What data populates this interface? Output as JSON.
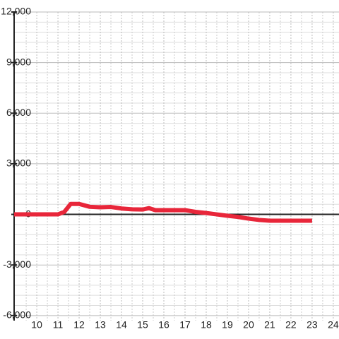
{
  "chart_data": {
    "type": "line",
    "x": [
      8.93,
      11,
      11.3,
      11.6,
      12,
      12.5,
      13,
      13.5,
      14,
      14.5,
      15,
      15.3,
      15.6,
      16,
      17,
      17.5,
      18,
      18.5,
      19,
      19.5,
      20,
      20.5,
      21,
      22,
      23
    ],
    "series": [
      {
        "color": "#e8263a",
        "values": [
          0,
          0,
          150,
          620,
          620,
          450,
          420,
          440,
          350,
          300,
          290,
          370,
          250,
          250,
          250,
          150,
          80,
          0,
          -80,
          -150,
          -250,
          -330,
          -375,
          -375,
          -375
        ]
      }
    ],
    "xlim": [
      8.93,
      24.27
    ],
    "xticks": [
      10,
      11,
      12,
      13,
      14,
      15,
      16,
      17,
      18,
      19,
      20,
      21,
      22,
      23,
      24
    ],
    "xminorticks": [
      9.5,
      10.5,
      11.5,
      12.5,
      13.5,
      14.5,
      15.5,
      16.5,
      17.5,
      18.5,
      19.5,
      20.5,
      21.5,
      22.5,
      23.5
    ],
    "ylim": [
      -6300,
      12000
    ],
    "yticks": [
      {
        "value": -6000,
        "label": "-6,000"
      },
      {
        "value": -3000,
        "label": "-3,000"
      },
      0,
      {
        "value": 3000,
        "label": "3,000"
      },
      {
        "value": 6000,
        "label": "6,000"
      },
      {
        "value": 9000,
        "label": "9,000"
      },
      {
        "value": 12000,
        "label": "12,000"
      }
    ],
    "yminorticks": [
      -5400,
      -4800,
      -4200,
      -3600,
      -2400,
      -1800,
      -1200,
      -600,
      600,
      1200,
      1800,
      2400,
      3600,
      4200,
      4800,
      5400,
      6600,
      7200,
      7800,
      8400,
      9600,
      10200,
      10800,
      11400
    ],
    "grid": true
  }
}
